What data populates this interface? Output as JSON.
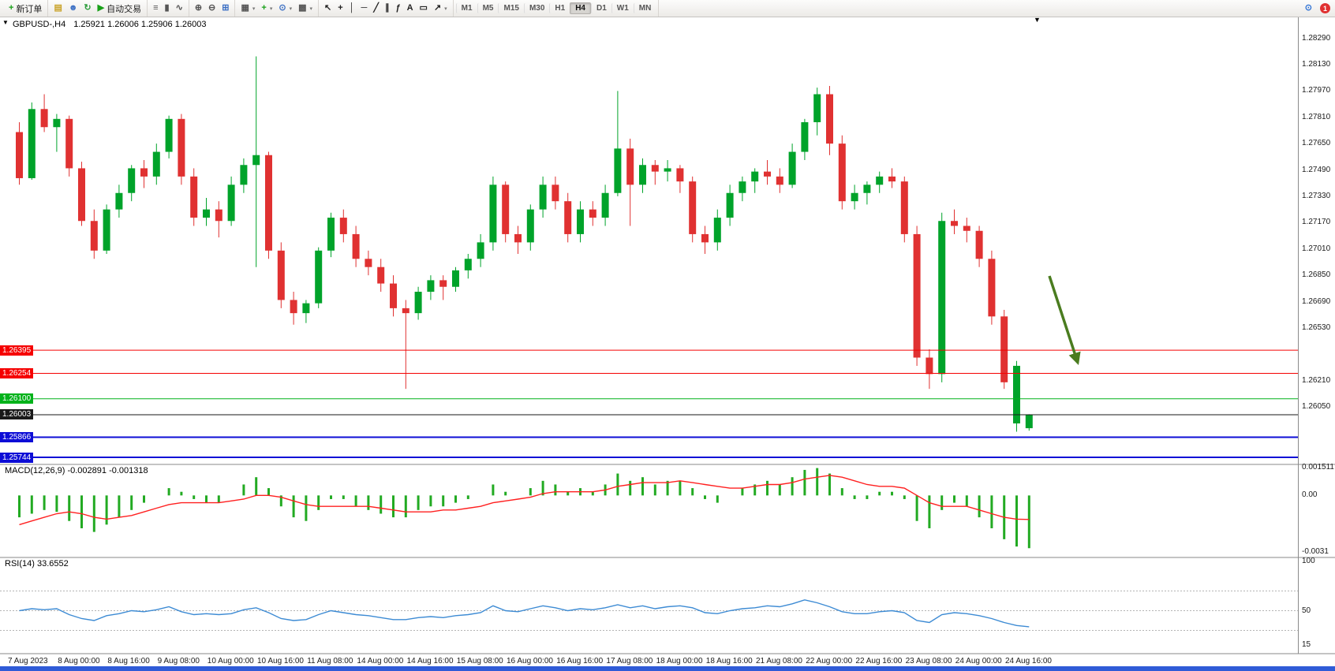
{
  "toolbar": {
    "groups": [
      {
        "items": [
          {
            "name": "new-order-button",
            "glyph": "+",
            "glyph_color": "#18a018",
            "label": "新订单"
          }
        ]
      },
      {
        "items": [
          {
            "name": "chart-window-icon",
            "glyph": "▤",
            "glyph_color": "#c9a227"
          },
          {
            "name": "market-watch-icon",
            "glyph": "☻",
            "glyph_color": "#3b6fc4"
          },
          {
            "name": "refresh-icon",
            "glyph": "↻",
            "glyph_color": "#2e9e3e"
          },
          {
            "name": "autotrading-button",
            "glyph": "▶",
            "glyph_color": "#18a018",
            "label": "自动交易"
          }
        ]
      },
      {
        "items": [
          {
            "name": "bar-chart-icon",
            "glyph": "≡",
            "glyph_color": "#555555"
          },
          {
            "name": "candlestick-chart-icon",
            "glyph": "▮",
            "glyph_color": "#555555"
          },
          {
            "name": "line-chart-icon",
            "glyph": "∿",
            "glyph_color": "#555555"
          }
        ]
      },
      {
        "items": [
          {
            "name": "zoom-in-icon",
            "glyph": "⊕",
            "glyph_color": "#555555"
          },
          {
            "name": "zoom-out-icon",
            "glyph": "⊖",
            "glyph_color": "#555555"
          },
          {
            "name": "tile-windows-icon",
            "glyph": "⊞",
            "glyph_color": "#3b6fc4"
          }
        ]
      },
      {
        "items": [
          {
            "name": "new-chart-icon",
            "glyph": "▦",
            "glyph_color": "#555555",
            "dropdown": true
          },
          {
            "name": "indicators-icon",
            "glyph": "+",
            "glyph_color": "#18a018",
            "dropdown": true
          },
          {
            "name": "periods-icon",
            "glyph": "⊙",
            "glyph_color": "#3b6fc4",
            "dropdown": true
          },
          {
            "name": "chart-template-icon",
            "glyph": "▩",
            "glyph_color": "#555555",
            "dropdown": true
          }
        ]
      },
      {
        "items": [
          {
            "name": "cursor-icon",
            "glyph": "↖",
            "glyph_color": "#222222"
          },
          {
            "name": "crosshair-icon",
            "glyph": "+",
            "glyph_color": "#222222"
          },
          {
            "name": "vertical-line-icon",
            "glyph": "│",
            "glyph_color": "#222222"
          },
          {
            "name": "horizontal-line-icon",
            "glyph": "─",
            "glyph_color": "#222222"
          },
          {
            "name": "trendline-icon",
            "glyph": "╱",
            "glyph_color": "#222222"
          },
          {
            "name": "equidistant-channel-icon",
            "glyph": "∥",
            "glyph_color": "#222222"
          },
          {
            "name": "fibonacci-icon",
            "glyph": "ƒ",
            "glyph_color": "#222222"
          },
          {
            "name": "text-icon",
            "glyph": "A",
            "glyph_color": "#222222"
          },
          {
            "name": "text-label-icon",
            "glyph": "▭",
            "glyph_color": "#222222"
          },
          {
            "name": "arrows-icon",
            "glyph": "↗",
            "glyph_color": "#222222",
            "dropdown": true
          }
        ]
      }
    ],
    "timeframes": [
      "M1",
      "M5",
      "M15",
      "M30",
      "H1",
      "H4",
      "D1",
      "W1",
      "MN"
    ],
    "active_timeframe": "H4",
    "right_items": [
      {
        "name": "search-icon",
        "glyph": "⊙",
        "glyph_color": "#2a6fd4"
      },
      {
        "name": "notification-badge",
        "label": "1",
        "bg": "#e03030"
      }
    ]
  },
  "chart": {
    "symbol": "GBPUSD-,H4",
    "ohlc": "1.25921 1.26006 1.25906 1.26003",
    "price_axis_labels": [
      "1.28290",
      "1.28130",
      "1.27970",
      "1.27810",
      "1.27650",
      "1.27490",
      "1.27330",
      "1.27170",
      "1.27010",
      "1.26850",
      "1.26690",
      "1.26530",
      "1.26210",
      "1.26050"
    ]
  },
  "indicators": {
    "macd": {
      "title": "MACD(12,26,9) -0.002891 -0.001318"
    },
    "rsi": {
      "title": "RSI(14) 33.6552"
    }
  },
  "annotations": [
    {
      "name": "down-arrow",
      "color": "#4a7c1f"
    }
  ],
  "chart_data": [
    {
      "type": "candlestick",
      "symbol": "GBPUSD-",
      "period": "H4",
      "current_ohlc": {
        "open": 1.25921,
        "high": 1.26006,
        "low": 1.25906,
        "close": 1.26003
      },
      "ylim": [
        1.25701,
        1.28417
      ],
      "x_label_step": 4,
      "x_labels": [
        "7 Aug 2023",
        "8 Aug 00:00",
        "8 Aug 16:00",
        "9 Aug 08:00",
        "10 Aug 00:00",
        "10 Aug 16:00",
        "11 Aug 08:00",
        "14 Aug 00:00",
        "14 Aug 16:00",
        "15 Aug 08:00",
        "16 Aug 00:00",
        "16 Aug 16:00",
        "17 Aug 08:00",
        "18 Aug 00:00",
        "18 Aug 16:00",
        "21 Aug 08:00",
        "22 Aug 00:00",
        "22 Aug 16:00",
        "23 Aug 08:00",
        "24 Aug 00:00",
        "24 Aug 16:00"
      ],
      "candles": [
        [
          1.2772,
          1.2778,
          1.274,
          1.2744
        ],
        [
          1.2744,
          1.279,
          1.2743,
          1.2786
        ],
        [
          1.2786,
          1.2795,
          1.2772,
          1.2775
        ],
        [
          1.2775,
          1.2783,
          1.276,
          1.278
        ],
        [
          1.278,
          1.2782,
          1.2745,
          1.275
        ],
        [
          1.275,
          1.2754,
          1.2715,
          1.2718
        ],
        [
          1.2718,
          1.2725,
          1.2695,
          1.27
        ],
        [
          1.27,
          1.2728,
          1.2698,
          1.2725
        ],
        [
          1.2725,
          1.274,
          1.272,
          1.2735
        ],
        [
          1.2735,
          1.2752,
          1.273,
          1.275
        ],
        [
          1.275,
          1.2755,
          1.2738,
          1.2745
        ],
        [
          1.2745,
          1.2765,
          1.274,
          1.276
        ],
        [
          1.276,
          1.2782,
          1.2756,
          1.278
        ],
        [
          1.278,
          1.2783,
          1.274,
          1.2745
        ],
        [
          1.2745,
          1.275,
          1.2715,
          1.272
        ],
        [
          1.272,
          1.2732,
          1.2715,
          1.2725
        ],
        [
          1.2725,
          1.273,
          1.2708,
          1.2718
        ],
        [
          1.2718,
          1.2745,
          1.2715,
          1.274
        ],
        [
          1.274,
          1.2756,
          1.2735,
          1.2752
        ],
        [
          1.2752,
          1.2818,
          1.269,
          1.2758
        ],
        [
          1.2758,
          1.276,
          1.2695,
          1.27
        ],
        [
          1.27,
          1.2705,
          1.2665,
          1.267
        ],
        [
          1.267,
          1.2675,
          1.2655,
          1.2662
        ],
        [
          1.2662,
          1.267,
          1.2656,
          1.2668
        ],
        [
          1.2668,
          1.2702,
          1.2665,
          1.27
        ],
        [
          1.27,
          1.2723,
          1.2696,
          1.272
        ],
        [
          1.272,
          1.2725,
          1.2705,
          1.271
        ],
        [
          1.271,
          1.2715,
          1.269,
          1.2695
        ],
        [
          1.2695,
          1.27,
          1.2685,
          1.269
        ],
        [
          1.269,
          1.2695,
          1.2675,
          1.268
        ],
        [
          1.268,
          1.2685,
          1.266,
          1.2665
        ],
        [
          1.2665,
          1.267,
          1.2616,
          1.2662
        ],
        [
          1.2662,
          1.2678,
          1.2658,
          1.2675
        ],
        [
          1.2675,
          1.2685,
          1.267,
          1.2682
        ],
        [
          1.2682,
          1.2685,
          1.267,
          1.2678
        ],
        [
          1.2678,
          1.269,
          1.2675,
          1.2688
        ],
        [
          1.2688,
          1.2698,
          1.2683,
          1.2695
        ],
        [
          1.2695,
          1.271,
          1.269,
          1.2705
        ],
        [
          1.2705,
          1.2745,
          1.27,
          1.274
        ],
        [
          1.274,
          1.2742,
          1.2705,
          1.271
        ],
        [
          1.271,
          1.2715,
          1.2698,
          1.2705
        ],
        [
          1.2705,
          1.2728,
          1.27,
          1.2725
        ],
        [
          1.2725,
          1.2745,
          1.272,
          1.274
        ],
        [
          1.274,
          1.2745,
          1.2725,
          1.273
        ],
        [
          1.273,
          1.2735,
          1.2705,
          1.271
        ],
        [
          1.271,
          1.273,
          1.2705,
          1.2725
        ],
        [
          1.2725,
          1.273,
          1.2715,
          1.272
        ],
        [
          1.272,
          1.274,
          1.2715,
          1.2735
        ],
        [
          1.2735,
          1.2797,
          1.2733,
          1.2762
        ],
        [
          1.2762,
          1.2768,
          1.2715,
          1.274
        ],
        [
          1.274,
          1.2756,
          1.2735,
          1.2752
        ],
        [
          1.2752,
          1.2755,
          1.274,
          1.2748
        ],
        [
          1.2748,
          1.2755,
          1.2742,
          1.275
        ],
        [
          1.275,
          1.2752,
          1.2735,
          1.2742
        ],
        [
          1.2742,
          1.2745,
          1.2705,
          1.271
        ],
        [
          1.271,
          1.2715,
          1.2698,
          1.2705
        ],
        [
          1.2705,
          1.2725,
          1.27,
          1.272
        ],
        [
          1.272,
          1.274,
          1.2715,
          1.2735
        ],
        [
          1.2735,
          1.2745,
          1.273,
          1.2742
        ],
        [
          1.2742,
          1.275,
          1.2735,
          1.2748
        ],
        [
          1.2748,
          1.2755,
          1.274,
          1.2745
        ],
        [
          1.2745,
          1.275,
          1.2735,
          1.274
        ],
        [
          1.274,
          1.2765,
          1.2738,
          1.276
        ],
        [
          1.276,
          1.278,
          1.2755,
          1.2778
        ],
        [
          1.2778,
          1.2799,
          1.277,
          1.2795
        ],
        [
          1.2795,
          1.28,
          1.2758,
          1.2765
        ],
        [
          1.2765,
          1.277,
          1.2725,
          1.273
        ],
        [
          1.273,
          1.274,
          1.2725,
          1.2735
        ],
        [
          1.2735,
          1.2742,
          1.2728,
          1.274
        ],
        [
          1.274,
          1.2748,
          1.2735,
          1.2745
        ],
        [
          1.2745,
          1.275,
          1.2738,
          1.2742
        ],
        [
          1.2742,
          1.2745,
          1.2705,
          1.271
        ],
        [
          1.271,
          1.2715,
          1.263,
          1.2635
        ],
        [
          1.2635,
          1.264,
          1.2616,
          1.2625
        ],
        [
          1.2625,
          1.2723,
          1.262,
          1.2718
        ],
        [
          1.2718,
          1.2725,
          1.271,
          1.2715
        ],
        [
          1.2715,
          1.272,
          1.2705,
          1.2712
        ],
        [
          1.2712,
          1.2715,
          1.269,
          1.2695
        ],
        [
          1.2695,
          1.27,
          1.2655,
          1.266
        ],
        [
          1.266,
          1.2664,
          1.2616,
          1.262
        ],
        [
          1.2595,
          1.2633,
          1.259,
          1.263
        ],
        [
          1.25921,
          1.26006,
          1.25906,
          1.26003
        ]
      ],
      "horizontal_lines": [
        {
          "price": 1.26395,
          "color": "#f50000",
          "width": 1,
          "tag": "1.26395"
        },
        {
          "price": 1.26254,
          "color": "#f50000",
          "width": 1,
          "tag": "1.26254"
        },
        {
          "price": 1.261,
          "color": "#00b21a",
          "width": 1,
          "tag": "1.26100"
        },
        {
          "price": 1.26003,
          "color": "#1a1a1a",
          "width": 1,
          "tag": "1.26003"
        },
        {
          "price": 1.25866,
          "color": "#0d0dd6",
          "width": 2,
          "tag": "1.25866"
        },
        {
          "price": 1.25744,
          "color": "#0d0dd6",
          "width": 2,
          "tag": "1.25744"
        }
      ],
      "colors": {
        "up": "#00a32a",
        "down": "#e03131"
      }
    },
    {
      "type": "bar",
      "name": "MACD(12,26,9)",
      "current_macd": -0.002891,
      "current_signal": -0.001318,
      "ylim": [
        -0.0034,
        0.0017
      ],
      "axis_labels": [
        "0.001511",
        "0.00",
        "-0.0031"
      ],
      "histogram": [
        -0.0012,
        -0.001,
        -0.0008,
        -0.0009,
        -0.0014,
        -0.0018,
        -0.002,
        -0.0016,
        -0.0012,
        -0.0008,
        -0.0004,
        0.0,
        0.0004,
        0.0002,
        -0.0002,
        -0.0004,
        -0.0004,
        0.0,
        0.0006,
        0.001,
        0.0004,
        -0.0006,
        -0.0012,
        -0.0014,
        -0.0008,
        -0.0002,
        -0.0002,
        -0.0006,
        -0.0008,
        -0.001,
        -0.0012,
        -0.0012,
        -0.0008,
        -0.0006,
        -0.0006,
        -0.0004,
        -0.0002,
        0.0,
        0.0006,
        0.0002,
        0.0,
        0.0004,
        0.0008,
        0.0006,
        0.0002,
        0.0004,
        0.0002,
        0.0006,
        0.0012,
        0.0008,
        0.001,
        0.0006,
        0.0008,
        0.0008,
        0.0004,
        -0.0002,
        -0.0004,
        0.0,
        0.0004,
        0.0006,
        0.0008,
        0.0006,
        0.001,
        0.0014,
        0.0015,
        0.0012,
        0.0004,
        -0.0002,
        -0.0002,
        0.0002,
        0.0002,
        -0.0002,
        -0.0014,
        -0.0018,
        -0.0008,
        -0.0004,
        -0.0006,
        -0.0012,
        -0.0018,
        -0.0024,
        -0.0028,
        -0.002891
      ],
      "signal": [
        -0.0016,
        -0.0014,
        -0.0012,
        -0.001,
        -0.0009,
        -0.001,
        -0.0012,
        -0.0013,
        -0.0012,
        -0.0011,
        -0.0009,
        -0.0007,
        -0.0005,
        -0.0004,
        -0.0004,
        -0.0004,
        -0.0004,
        -0.0003,
        -0.0002,
        0.0,
        0.0,
        -0.0001,
        -0.0003,
        -0.0005,
        -0.0006,
        -0.0006,
        -0.0006,
        -0.0006,
        -0.0006,
        -0.0007,
        -0.0008,
        -0.0009,
        -0.0009,
        -0.0009,
        -0.0008,
        -0.0008,
        -0.0007,
        -0.0006,
        -0.0004,
        -0.0003,
        -0.0002,
        -0.0001,
        0.0001,
        0.0002,
        0.0002,
        0.0002,
        0.0002,
        0.0003,
        0.0005,
        0.0006,
        0.0007,
        0.0007,
        0.0007,
        0.0008,
        0.0007,
        0.0006,
        0.0005,
        0.0004,
        0.0004,
        0.0005,
        0.0006,
        0.0006,
        0.0007,
        0.0009,
        0.001,
        0.0011,
        0.001,
        0.0008,
        0.0006,
        0.0005,
        0.0005,
        0.0004,
        0.0,
        -0.0004,
        -0.0006,
        -0.0006,
        -0.0006,
        -0.0008,
        -0.001,
        -0.0012,
        -0.0013,
        -0.001318
      ],
      "colors": {
        "histogram": "#22aa22",
        "signal": "#ff2020"
      }
    },
    {
      "type": "line",
      "name": "RSI(14)",
      "current": 33.6552,
      "ylim": [
        0,
        100
      ],
      "levels": [
        70,
        50,
        30
      ],
      "axis_labels": [
        "100",
        "50",
        "15"
      ],
      "values": [
        50,
        52,
        51,
        52,
        46,
        42,
        40,
        45,
        47,
        50,
        49,
        51,
        54,
        49,
        46,
        47,
        46,
        47,
        51,
        53,
        48,
        42,
        40,
        41,
        46,
        50,
        48,
        46,
        45,
        43,
        41,
        41,
        43,
        44,
        43,
        45,
        46,
        48,
        55,
        50,
        49,
        52,
        55,
        53,
        50,
        52,
        51,
        53,
        56,
        53,
        55,
        52,
        54,
        55,
        53,
        48,
        47,
        50,
        52,
        53,
        55,
        54,
        57,
        61,
        58,
        54,
        49,
        47,
        47,
        49,
        50,
        48,
        40,
        38,
        46,
        48,
        47,
        45,
        42,
        38,
        35,
        33.6552
      ],
      "color": "#3d8bd4"
    }
  ]
}
